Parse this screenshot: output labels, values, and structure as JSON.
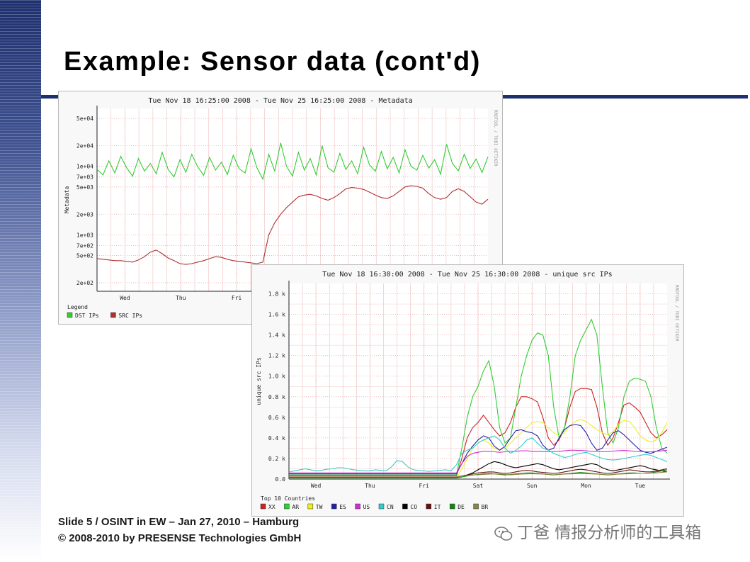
{
  "slide": {
    "title": "Example: Sensor data (cont'd)",
    "footer_line1": "Slide 5 / OSINT in EW – Jan 27, 2010 – Hamburg",
    "footer_line2": "© 2008-2010 by PRESENSE Technologies GmbH",
    "watermark": "丁爸 情报分析师的工具箱",
    "colors": {
      "band_top": "#1e2f6e",
      "rule": "#1e2f6e"
    }
  },
  "chart_data": [
    {
      "type": "line",
      "title": "Tue Nov 18 16:25:00 2008 - Tue Nov 25 16:25:00 2008 - Metadata",
      "ylabel": "Metadata",
      "side_label": "RRDTOOL / TOBI OETIKER",
      "y_scale": "log",
      "ylim": [
        150,
        70000
      ],
      "y_ticks": [
        {
          "value": 200,
          "label": "2e+02"
        },
        {
          "value": 500,
          "label": "5e+02"
        },
        {
          "value": 700,
          "label": "7e+02"
        },
        {
          "value": 1000,
          "label": "1e+03"
        },
        {
          "value": 2000,
          "label": "2e+03"
        },
        {
          "value": 5000,
          "label": "5e+03"
        },
        {
          "value": 7000,
          "label": "7e+03"
        },
        {
          "value": 10000,
          "label": "1e+04"
        },
        {
          "value": 20000,
          "label": "2e+04"
        },
        {
          "value": 50000,
          "label": "5e+04"
        }
      ],
      "x_ticks": [
        "Wed",
        "Thu",
        "Fri"
      ],
      "legend_title": "Legend",
      "legend_position": "bottom",
      "grid": true,
      "series": [
        {
          "name": "DST IPs",
          "color": "#33cc33",
          "values": [
            9000,
            7500,
            12000,
            8000,
            14000,
            9500,
            7200,
            13000,
            8500,
            11000,
            7800,
            16000,
            9000,
            7000,
            12500,
            8200,
            15000,
            9800,
            7400,
            13500,
            8800,
            11500,
            7600,
            14500,
            9200,
            8000,
            18000,
            9500,
            6500,
            15000,
            8500,
            22000,
            10000,
            7200,
            16000,
            8800,
            13000,
            7500,
            20000,
            9500,
            8200,
            15500,
            9000,
            12000,
            7800,
            19000,
            10500,
            8500,
            16500,
            9200,
            13500,
            8000,
            17500,
            10000,
            8800,
            14500,
            9400,
            12500,
            7700,
            21000,
            11000,
            8600,
            15000,
            9300,
            12800,
            8100,
            13800
          ]
        },
        {
          "name": "SRC IPs",
          "color": "#b03030",
          "values": [
            450,
            440,
            430,
            420,
            420,
            410,
            400,
            430,
            480,
            560,
            600,
            530,
            460,
            420,
            380,
            370,
            380,
            400,
            420,
            450,
            480,
            470,
            440,
            420,
            410,
            400,
            390,
            380,
            400,
            1000,
            1500,
            2000,
            2500,
            3000,
            3600,
            3800,
            3900,
            3700,
            3400,
            3200,
            3500,
            4000,
            4700,
            4900,
            4800,
            4600,
            4200,
            3800,
            3500,
            3400,
            3700,
            4300,
            5000,
            5200,
            5100,
            4800,
            4000,
            3500,
            3300,
            3500,
            4300,
            4700,
            4300,
            3600,
            3000,
            2800,
            3300
          ]
        }
      ]
    },
    {
      "type": "line",
      "title": "Tue Nov 18 16:30:00 2008 - Tue Nov 25 16:30:00 2008 - unique src IPs",
      "ylabel": "unique src IPs",
      "side_label": "RRDTOOL / TOBI OETIKER",
      "ylim": [
        0,
        1900
      ],
      "y_ticks": [
        {
          "value": 0,
          "label": "0.0"
        },
        {
          "value": 200,
          "label": "0.2 k"
        },
        {
          "value": 400,
          "label": "0.4 k"
        },
        {
          "value": 600,
          "label": "0.6 k"
        },
        {
          "value": 800,
          "label": "0.8 k"
        },
        {
          "value": 1000,
          "label": "1.0 k"
        },
        {
          "value": 1200,
          "label": "1.2 k"
        },
        {
          "value": 1400,
          "label": "1.4 k"
        },
        {
          "value": 1600,
          "label": "1.6 k"
        },
        {
          "value": 1800,
          "label": "1.8 k"
        }
      ],
      "x_ticks": [
        "Wed",
        "Thu",
        "Fri",
        "Sat",
        "Sun",
        "Mon",
        "Tue"
      ],
      "legend_title": "Top 10 Countries",
      "legend_position": "bottom",
      "grid": true,
      "series": [
        {
          "name": "XX",
          "color": "#cc2222",
          "values": [
            30,
            30,
            30,
            30,
            30,
            30,
            30,
            30,
            30,
            30,
            30,
            30,
            30,
            30,
            30,
            30,
            30,
            30,
            30,
            30,
            30,
            30,
            30,
            30,
            30,
            30,
            30,
            30,
            30,
            30,
            30,
            30,
            200,
            400,
            500,
            550,
            620,
            550,
            480,
            420,
            450,
            550,
            700,
            800,
            800,
            780,
            750,
            600,
            400,
            330,
            380,
            500,
            700,
            850,
            880,
            880,
            870,
            700,
            450,
            330,
            400,
            550,
            720,
            740,
            700,
            650,
            550,
            450,
            400,
            430,
            480
          ]
        },
        {
          "name": "AR",
          "color": "#33cc33",
          "values": [
            40,
            40,
            40,
            40,
            40,
            40,
            40,
            40,
            40,
            40,
            40,
            40,
            40,
            40,
            40,
            40,
            40,
            40,
            40,
            40,
            40,
            40,
            40,
            40,
            40,
            40,
            40,
            40,
            40,
            40,
            40,
            40,
            300,
            600,
            800,
            900,
            1050,
            1150,
            900,
            500,
            350,
            400,
            700,
            1000,
            1200,
            1350,
            1420,
            1400,
            1200,
            700,
            400,
            500,
            800,
            1200,
            1350,
            1450,
            1550,
            1400,
            900,
            450,
            350,
            500,
            800,
            950,
            980,
            970,
            950,
            800,
            500,
            300,
            250
          ]
        },
        {
          "name": "TW",
          "color": "#eeee22",
          "values": [
            10,
            10,
            10,
            10,
            10,
            10,
            10,
            10,
            10,
            10,
            10,
            10,
            10,
            10,
            10,
            10,
            10,
            10,
            10,
            10,
            10,
            10,
            10,
            10,
            10,
            10,
            10,
            10,
            10,
            10,
            10,
            10,
            100,
            200,
            300,
            350,
            380,
            350,
            300,
            280,
            300,
            350,
            400,
            450,
            500,
            550,
            560,
            550,
            500,
            450,
            420,
            450,
            520,
            560,
            580,
            560,
            520,
            480,
            450,
            430,
            460,
            530,
            570,
            560,
            500,
            420,
            380,
            360,
            380,
            450,
            550
          ]
        },
        {
          "name": "ES",
          "color": "#2222aa",
          "values": [
            50,
            50,
            50,
            50,
            50,
            50,
            50,
            50,
            50,
            50,
            50,
            50,
            50,
            50,
            50,
            50,
            50,
            50,
            50,
            50,
            50,
            50,
            50,
            50,
            50,
            50,
            50,
            50,
            50,
            50,
            50,
            50,
            150,
            250,
            320,
            380,
            420,
            400,
            320,
            280,
            320,
            400,
            470,
            480,
            460,
            450,
            420,
            330,
            280,
            300,
            400,
            480,
            520,
            530,
            520,
            450,
            350,
            280,
            300,
            380,
            450,
            470,
            430,
            380,
            330,
            280,
            260,
            250,
            270,
            290,
            310
          ]
        },
        {
          "name": "US",
          "color": "#cc33cc",
          "values": [
            60,
            60,
            60,
            60,
            60,
            60,
            60,
            60,
            60,
            60,
            60,
            60,
            60,
            60,
            60,
            60,
            60,
            60,
            60,
            60,
            60,
            60,
            60,
            60,
            60,
            60,
            60,
            60,
            60,
            60,
            60,
            60,
            150,
            220,
            250,
            260,
            270,
            270,
            265,
            260,
            265,
            270,
            270,
            275,
            275,
            270,
            270,
            268,
            265,
            268,
            270,
            275,
            280,
            280,
            278,
            275,
            270,
            268,
            265,
            268,
            272,
            276,
            278,
            275,
            270,
            268,
            265,
            266,
            270,
            275,
            280
          ]
        },
        {
          "name": "CN",
          "color": "#33cccc",
          "values": [
            70,
            80,
            90,
            100,
            90,
            80,
            85,
            95,
            100,
            110,
            110,
            100,
            90,
            85,
            80,
            80,
            90,
            85,
            80,
            120,
            180,
            170,
            120,
            90,
            85,
            80,
            75,
            80,
            85,
            90,
            80,
            140,
            250,
            280,
            300,
            350,
            380,
            400,
            420,
            380,
            300,
            250,
            280,
            320,
            380,
            400,
            350,
            300,
            280,
            250,
            230,
            210,
            220,
            240,
            250,
            260,
            240,
            220,
            200,
            190,
            185,
            190,
            200,
            210,
            220,
            230,
            240,
            230,
            210,
            190,
            170
          ]
        },
        {
          "name": "CO",
          "color": "#000000",
          "values": [
            20,
            20,
            20,
            20,
            20,
            20,
            20,
            20,
            20,
            20,
            20,
            20,
            20,
            20,
            20,
            20,
            20,
            20,
            20,
            20,
            20,
            20,
            20,
            20,
            20,
            20,
            20,
            20,
            20,
            20,
            20,
            20,
            30,
            40,
            60,
            90,
            120,
            150,
            170,
            160,
            140,
            120,
            110,
            120,
            130,
            140,
            150,
            140,
            120,
            100,
            90,
            100,
            110,
            120,
            130,
            140,
            150,
            140,
            110,
            90,
            80,
            90,
            100,
            110,
            120,
            130,
            120,
            100,
            90,
            80,
            70
          ]
        },
        {
          "name": "IT",
          "color": "#661111",
          "values": [
            15,
            15,
            15,
            15,
            15,
            15,
            15,
            15,
            15,
            15,
            15,
            15,
            15,
            15,
            15,
            15,
            15,
            15,
            15,
            15,
            15,
            15,
            15,
            15,
            15,
            15,
            15,
            15,
            15,
            15,
            15,
            15,
            30,
            40,
            50,
            60,
            65,
            70,
            68,
            60,
            55,
            60,
            70,
            80,
            85,
            80,
            70,
            65,
            60,
            55,
            60,
            70,
            80,
            90,
            95,
            90,
            80,
            70,
            60,
            55,
            60,
            70,
            80,
            90,
            85,
            75,
            70,
            70,
            80,
            90,
            100
          ]
        },
        {
          "name": "DE",
          "color": "#118811",
          "values": [
            10,
            10,
            10,
            10,
            10,
            10,
            10,
            10,
            10,
            10,
            10,
            10,
            10,
            10,
            10,
            10,
            10,
            10,
            10,
            10,
            10,
            10,
            10,
            10,
            10,
            10,
            10,
            10,
            10,
            10,
            10,
            10,
            20,
            30,
            40,
            45,
            50,
            55,
            50,
            45,
            40,
            45,
            50,
            55,
            60,
            60,
            55,
            50,
            45,
            40,
            45,
            50,
            55,
            60,
            65,
            60,
            55,
            50,
            45,
            40,
            45,
            50,
            55,
            60,
            60,
            55,
            55,
            60,
            70,
            80,
            90
          ]
        },
        {
          "name": "BR",
          "color": "#888844",
          "values": [
            20,
            20,
            20,
            20,
            20,
            20,
            20,
            20,
            20,
            20,
            20,
            20,
            20,
            20,
            20,
            20,
            20,
            20,
            20,
            20,
            20,
            20,
            20,
            20,
            20,
            20,
            20,
            20,
            20,
            20,
            20,
            20,
            30,
            35,
            40,
            42,
            45,
            48,
            50,
            48,
            45,
            42,
            45,
            48,
            50,
            52,
            50,
            48,
            45,
            42,
            45,
            48,
            50,
            52,
            54,
            52,
            50,
            48,
            45,
            42,
            45,
            48,
            50,
            52,
            55,
            55,
            56,
            58,
            60,
            65,
            70
          ]
        }
      ]
    }
  ]
}
